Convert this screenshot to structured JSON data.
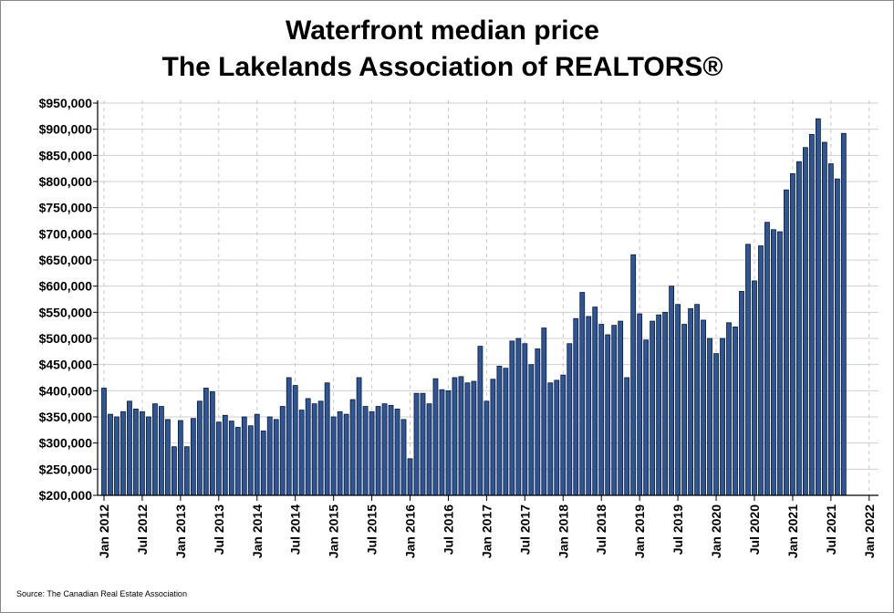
{
  "chart_data": {
    "type": "bar",
    "title": "Waterfront median price",
    "subtitle": "The Lakelands Association of REALTORS®",
    "xlabel": "",
    "ylabel": "",
    "ylim": [
      200000,
      950000
    ],
    "ytick_step": 50000,
    "ytick_labels": [
      "$200,000",
      "$250,000",
      "$300,000",
      "$350,000",
      "$400,000",
      "$450,000",
      "$500,000",
      "$550,000",
      "$600,000",
      "$650,000",
      "$700,000",
      "$750,000",
      "$800,000",
      "$850,000",
      "$900,000",
      "$950,000"
    ],
    "xtick_labels": [
      "Jan 2012",
      "Jul 2012",
      "Jan 2013",
      "Jul 2013",
      "Jan 2014",
      "Jul 2014",
      "Jan 2015",
      "Jul 2015",
      "Jan 2016",
      "Jul 2016",
      "Jan 2017",
      "Jul 2017",
      "Jan 2018",
      "Jul 2018",
      "Jan 2019",
      "Jul 2019",
      "Jan 2020",
      "Jul 2020",
      "Jan 2021",
      "Jul 2021",
      "Jan 2022"
    ],
    "start_month": "Jan 2012",
    "grid": true,
    "bar_color": "#2e5597",
    "values": [
      405000,
      355000,
      350000,
      360000,
      380000,
      365000,
      360000,
      350000,
      375000,
      370000,
      345000,
      293000,
      343000,
      293000,
      347000,
      380000,
      405000,
      398000,
      340000,
      353000,
      342000,
      330000,
      350000,
      333000,
      355000,
      323000,
      350000,
      345000,
      370000,
      425000,
      410000,
      363000,
      385000,
      375000,
      380000,
      415000,
      350000,
      360000,
      355000,
      383000,
      425000,
      370000,
      360000,
      370000,
      375000,
      372000,
      365000,
      345000,
      270000,
      395000,
      395000,
      375000,
      423000,
      402000,
      400000,
      425000,
      427000,
      415000,
      418000,
      485000,
      380000,
      422000,
      447000,
      443000,
      495000,
      500000,
      490000,
      450000,
      480000,
      520000,
      415000,
      420000,
      430000,
      490000,
      538000,
      588000,
      542000,
      560000,
      527000,
      507000,
      525000,
      533000,
      425000,
      660000,
      547000,
      497000,
      533000,
      545000,
      550000,
      600000,
      565000,
      527000,
      557000,
      565000,
      535000,
      500000,
      471000,
      500000,
      530000,
      522000,
      590000,
      680000,
      610000,
      677000,
      722000,
      708000,
      704000,
      784000,
      815000,
      838000,
      865000,
      890000,
      920000,
      875000,
      834000,
      805000,
      892000
    ]
  },
  "source": "Source: The Canadian Real Estate Association"
}
